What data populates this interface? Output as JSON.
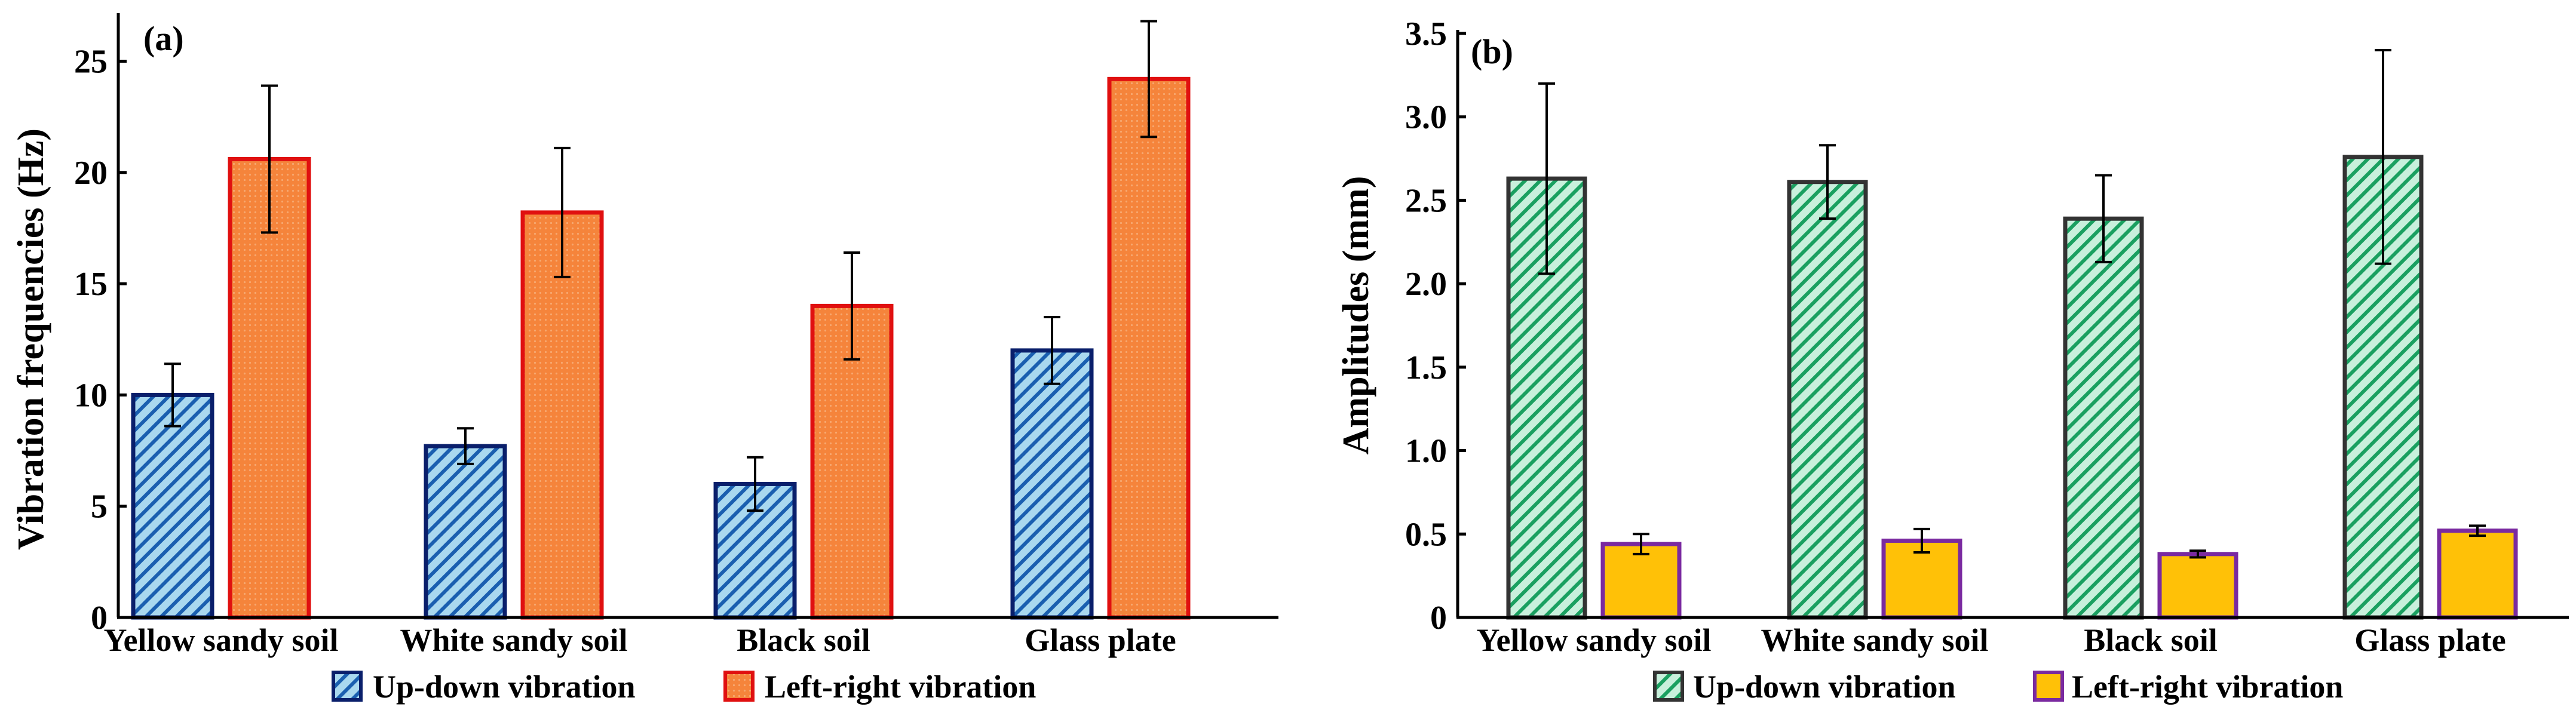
{
  "chart_data": [
    {
      "type": "bar",
      "panel_label": "(a)",
      "title": "",
      "xlabel": "",
      "ylabel": "Vibration frequencies (Hz)",
      "ylim": [
        0,
        27
      ],
      "yticks": [
        0,
        5,
        10,
        15,
        20,
        25
      ],
      "grid": false,
      "legend_position": "bottom",
      "categories": [
        "Yellow sandy soil",
        "White sandy soil",
        "Black soil",
        "Glass plate"
      ],
      "series": [
        {
          "name": "Up-down vibration",
          "values": [
            10.0,
            7.7,
            6.0,
            12.0
          ],
          "errors": [
            1.4,
            0.8,
            1.2,
            1.5
          ],
          "fill": "#a9d8ef",
          "hatch_color": "#1a5fb0",
          "hatch": "diagonal",
          "edge": "#0a1f6b"
        },
        {
          "name": "Left-right vibration",
          "values": [
            20.6,
            18.2,
            14.0,
            24.2
          ],
          "errors": [
            3.3,
            2.9,
            2.4,
            2.6
          ],
          "fill": "#f5843b",
          "hatch_color": "#f7a870",
          "hatch": "dots",
          "edge": "#e01010"
        }
      ]
    },
    {
      "type": "bar",
      "panel_label": "(b)",
      "title": "",
      "xlabel": "",
      "ylabel": "Amplitudes (mm)",
      "ylim": [
        0,
        3.5
      ],
      "yticks": [
        "0",
        "0.5",
        "1.0",
        "1.5",
        "2.0",
        "2.5",
        "3.0",
        "3.5"
      ],
      "grid": false,
      "legend_position": "bottom",
      "categories": [
        "Yellow sandy soil",
        "White sandy soil",
        "Black soil",
        "Glass plate"
      ],
      "series": [
        {
          "name": "Up-down vibration",
          "values": [
            2.63,
            2.61,
            2.39,
            2.76
          ],
          "errors": [
            0.57,
            0.22,
            0.26,
            0.64
          ],
          "fill": "#c8f0dc",
          "hatch_color": "#1aa060",
          "hatch": "diagonal",
          "edge": "#333333"
        },
        {
          "name": "Left-right vibration",
          "values": [
            0.44,
            0.46,
            0.38,
            0.52
          ],
          "errors": [
            0.06,
            0.07,
            0.02,
            0.03
          ],
          "fill": "#ffc107",
          "hatch_color": "#ffc107",
          "hatch": "none",
          "edge": "#7a2aa0"
        }
      ]
    }
  ]
}
